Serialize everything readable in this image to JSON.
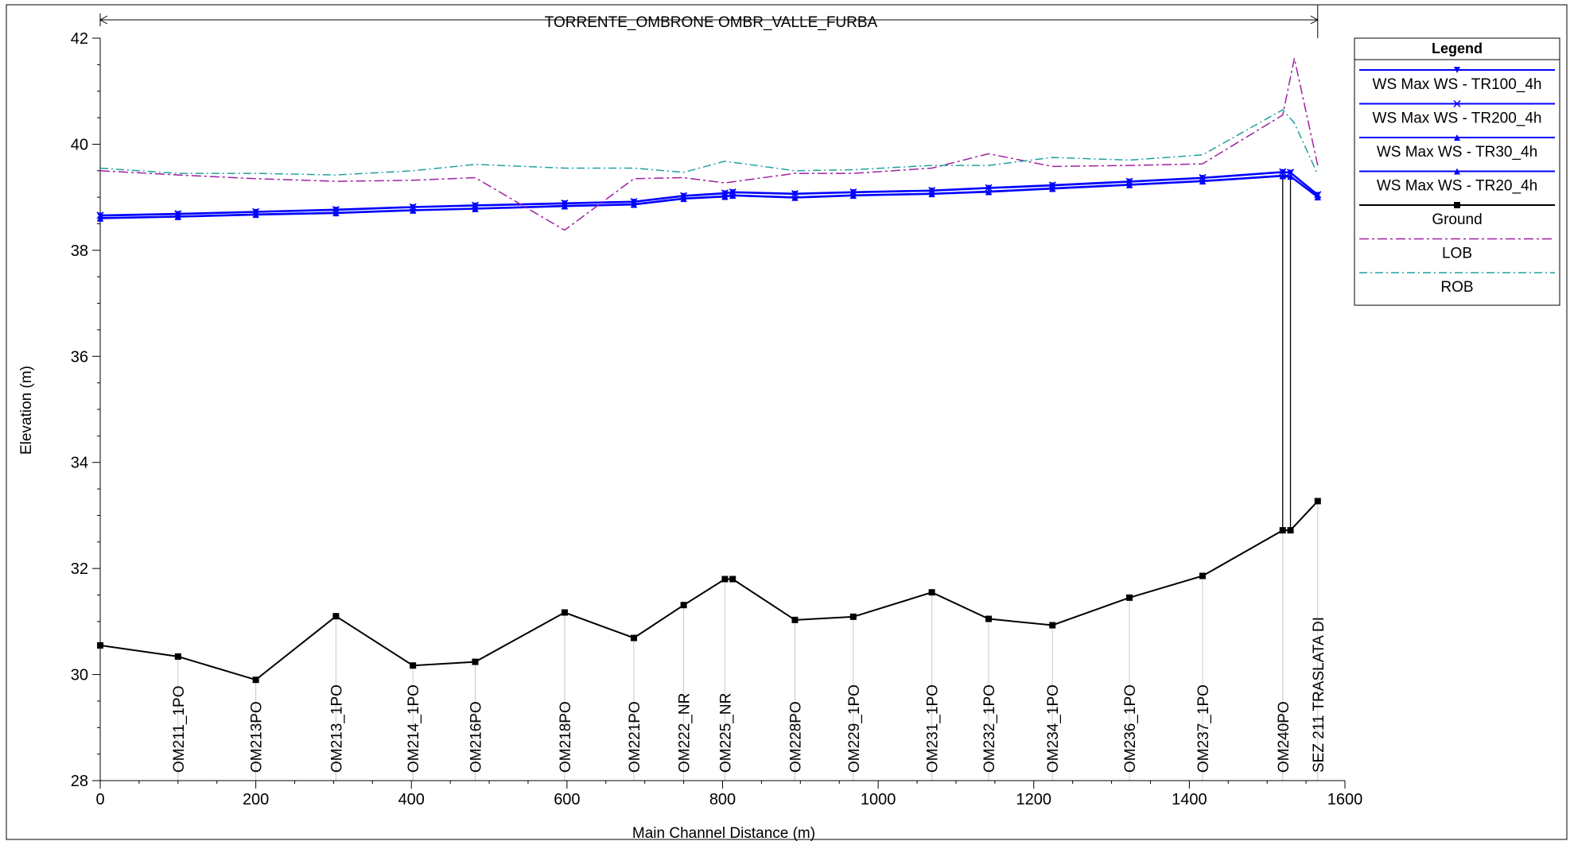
{
  "chart_data": {
    "type": "line",
    "title": "TORRENTE_OMBRONE OMBR_VALLE_FURBA",
    "xlabel": "Main Channel Distance (m)",
    "ylabel": "Elevation (m)",
    "xlim": [
      0,
      1600
    ],
    "ylim": [
      28,
      42
    ],
    "xticks": [
      0,
      200,
      400,
      600,
      800,
      1000,
      1200,
      1400,
      1600
    ],
    "yticks": [
      28,
      30,
      32,
      34,
      36,
      38,
      40,
      42
    ],
    "grid": false,
    "legend": {
      "title": "Legend",
      "position": "top-right"
    },
    "reach_span": [
      0,
      1565
    ],
    "stations": [
      {
        "x": 100,
        "name": "OM211_1PO"
      },
      {
        "x": 200,
        "name": "OM213PO"
      },
      {
        "x": 303,
        "name": "OM213_1PO"
      },
      {
        "x": 402,
        "name": "OM214_1PO"
      },
      {
        "x": 482,
        "name": "OM216PO"
      },
      {
        "x": 597,
        "name": "OM218PO"
      },
      {
        "x": 686,
        "name": "OM221PO"
      },
      {
        "x": 750,
        "name": "OM222_NR"
      },
      {
        "x": 803,
        "name": "OM225_NR"
      },
      {
        "x": 893,
        "name": "OM228PO"
      },
      {
        "x": 968,
        "name": "OM229_1PO"
      },
      {
        "x": 1069,
        "name": "OM231_1PO"
      },
      {
        "x": 1142,
        "name": "OM232_1PO"
      },
      {
        "x": 1224,
        "name": "OM234_1PO"
      },
      {
        "x": 1323,
        "name": "OM236_1PO"
      },
      {
        "x": 1417,
        "name": "OM237_1PO"
      },
      {
        "x": 1520,
        "name": "OM240PO"
      },
      {
        "x": 1565,
        "name": "SEZ 211 TRASLATA DI"
      }
    ],
    "structure": {
      "x_from": 1520,
      "x_to": 1530,
      "bottom": 32.72,
      "top": 39.38
    },
    "series": [
      {
        "name": "WS  Max WS - TR100_4h",
        "color": "#0000ff",
        "dash": "",
        "marker": "triangle-down",
        "x": [
          0,
          100,
          200,
          303,
          402,
          482,
          597,
          686,
          750,
          803,
          813,
          893,
          968,
          1069,
          1142,
          1224,
          1323,
          1417,
          1520,
          1530,
          1565
        ],
        "y": [
          38.65,
          38.68,
          38.72,
          38.76,
          38.81,
          38.84,
          38.88,
          38.91,
          39.02,
          39.07,
          39.09,
          39.06,
          39.09,
          39.12,
          39.17,
          39.22,
          39.29,
          39.36,
          39.47,
          39.46,
          39.04
        ]
      },
      {
        "name": "WS  Max WS - TR200_4h",
        "color": "#0000ff",
        "dash": "",
        "marker": "x",
        "x": [
          0,
          100,
          200,
          303,
          402,
          482,
          597,
          686,
          750,
          803,
          813,
          893,
          968,
          1069,
          1142,
          1224,
          1323,
          1417,
          1520,
          1530,
          1565
        ],
        "y": [
          38.66,
          38.69,
          38.73,
          38.77,
          38.82,
          38.85,
          38.89,
          38.92,
          39.03,
          39.08,
          39.1,
          39.07,
          39.1,
          39.13,
          39.18,
          39.23,
          39.3,
          39.37,
          39.48,
          39.47,
          39.05
        ]
      },
      {
        "name": "WS  Max WS - TR30_4h",
        "color": "#0000ff",
        "dash": "",
        "marker": "triangle-up",
        "x": [
          0,
          100,
          200,
          303,
          402,
          482,
          597,
          686,
          750,
          803,
          813,
          893,
          968,
          1069,
          1142,
          1224,
          1323,
          1417,
          1520,
          1530,
          1565
        ],
        "y": [
          38.61,
          38.64,
          38.68,
          38.71,
          38.76,
          38.79,
          38.84,
          38.87,
          38.98,
          39.02,
          39.04,
          39.0,
          39.04,
          39.07,
          39.11,
          39.17,
          39.24,
          39.31,
          39.41,
          39.4,
          39.01
        ]
      },
      {
        "name": "WS  Max WS - TR20_4h",
        "color": "#0000ff",
        "dash": "",
        "marker": "triangle-up",
        "x": [
          0,
          100,
          200,
          303,
          402,
          482,
          597,
          686,
          750,
          803,
          813,
          893,
          968,
          1069,
          1142,
          1224,
          1323,
          1417,
          1520,
          1530,
          1565
        ],
        "y": [
          38.6,
          38.63,
          38.67,
          38.7,
          38.75,
          38.78,
          38.83,
          38.86,
          38.97,
          39.01,
          39.03,
          38.99,
          39.03,
          39.06,
          39.1,
          39.16,
          39.23,
          39.3,
          39.4,
          39.39,
          39.0
        ]
      },
      {
        "name": "Ground",
        "color": "#000000",
        "dash": "",
        "marker": "square",
        "x": [
          0,
          100,
          200,
          303,
          402,
          482,
          597,
          686,
          750,
          803,
          813,
          893,
          968,
          1069,
          1142,
          1224,
          1323,
          1417,
          1520,
          1530,
          1565
        ],
        "y": [
          30.55,
          30.34,
          29.9,
          31.1,
          30.17,
          30.24,
          31.17,
          30.69,
          31.31,
          31.8,
          31.8,
          31.03,
          31.09,
          31.55,
          31.05,
          30.93,
          31.45,
          31.86,
          32.72,
          32.72,
          33.27
        ]
      },
      {
        "name": "LOB",
        "color": "#a020a0",
        "dash": "12,4,3,4",
        "marker": "",
        "x": [
          0,
          100,
          200,
          303,
          402,
          482,
          597,
          686,
          750,
          803,
          893,
          968,
          1069,
          1142,
          1224,
          1323,
          1417,
          1520,
          1535,
          1565
        ],
        "y": [
          39.5,
          39.42,
          39.35,
          39.3,
          39.32,
          39.37,
          38.38,
          39.35,
          39.37,
          39.27,
          39.45,
          39.45,
          39.55,
          39.82,
          39.58,
          39.6,
          39.63,
          40.55,
          41.62,
          39.6
        ]
      },
      {
        "name": "ROB",
        "color": "#20a0a0",
        "dash": "10,4,2,4",
        "marker": "",
        "x": [
          0,
          100,
          200,
          303,
          402,
          482,
          597,
          686,
          750,
          803,
          893,
          968,
          1069,
          1142,
          1224,
          1323,
          1417,
          1520,
          1535,
          1565
        ],
        "y": [
          39.55,
          39.45,
          39.45,
          39.42,
          39.5,
          39.62,
          39.55,
          39.55,
          39.47,
          39.68,
          39.5,
          39.52,
          39.6,
          39.6,
          39.75,
          39.7,
          39.8,
          40.65,
          40.4,
          39.43
        ]
      }
    ]
  }
}
